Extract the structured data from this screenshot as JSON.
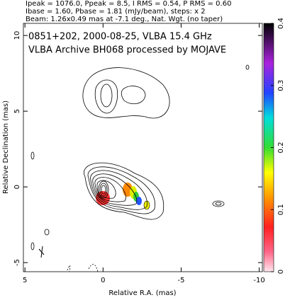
{
  "chart_data": {
    "type": "contour",
    "header": [
      "Ipeak = 1076.0, Ppeak = 8.5, I RMS = 0.54, P RMS = 0.60",
      "Ibase = 1.60, Pbase = 1.81 (mJy/beam), steps: x 2",
      "Beam: 1.26x0.49 mas at -7.1 deg., Nat. Wgt. (no taper)"
    ],
    "title": [
      "0851+202, 2000-08-25, VLBA 15.4 GHz",
      "VLBA Archive BH068 processed by MOJAVE"
    ],
    "xlabel": "Relative R.A. (mas)",
    "ylabel": "Relative Declination (mas)",
    "xlim": [
      5.1,
      -10.2
    ],
    "xticks": [
      5,
      0,
      -5,
      -10
    ],
    "ylim": [
      -5.6,
      10.8
    ],
    "yticks": [
      -5,
      0,
      5,
      10
    ],
    "colorbar": {
      "lim": [
        0,
        0.4
      ],
      "ticks": [
        0,
        0.1,
        0.2,
        0.3,
        0.4
      ]
    }
  }
}
